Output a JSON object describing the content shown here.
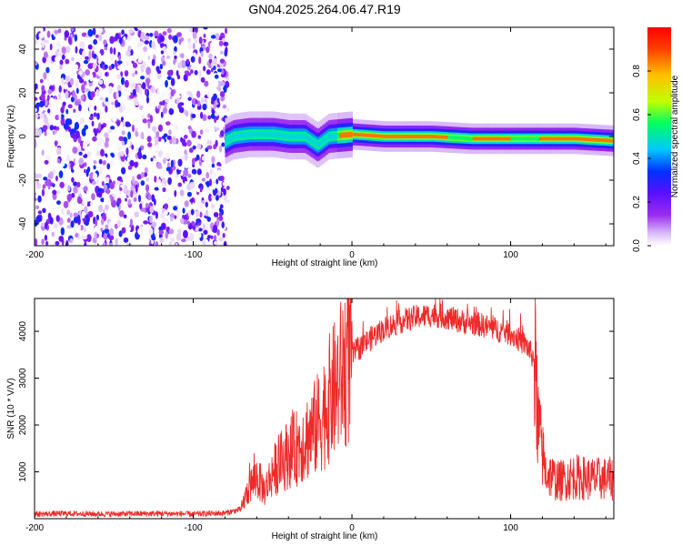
{
  "figure": {
    "title": "GN04.2025.264.06.47.R19"
  },
  "chart_data": [
    {
      "type": "heatmap",
      "title": "GN04.2025.264.06.47.R19",
      "xlabel": "Height of straight line (km)",
      "ylabel": "Frequency (Hz)",
      "xlim": [
        -200,
        165
      ],
      "ylim": [
        -50,
        50
      ],
      "x_ticks": [
        -200,
        -100,
        0,
        100
      ],
      "y_ticks": [
        -40,
        -20,
        0,
        20,
        40
      ],
      "colorbar": {
        "label": "Normalized spectral amplitude",
        "range": [
          0,
          1
        ],
        "ticks": [
          0.0,
          0.2,
          0.4,
          0.6,
          0.8
        ],
        "colormap": [
          "#ffffff",
          "#d8b8f8",
          "#9b2cf0",
          "#5a10ff",
          "#0030ff",
          "#00c8ff",
          "#00ff60",
          "#c0ff00",
          "#ffc000",
          "#ff4000",
          "#ff0000"
        ]
      },
      "regions": [
        {
          "name": "noise",
          "x_range": [
            -200,
            -78
          ],
          "description_values": {
            "amplitude_range": [
              0.0,
              0.35
            ]
          }
        },
        {
          "name": "signal_track",
          "x_range": [
            -78,
            165
          ],
          "centre_freq_hz": [
            [
              -85,
              -4
            ],
            [
              -75,
              0
            ],
            [
              -65,
              1
            ],
            [
              -50,
              1
            ],
            [
              -40,
              0
            ],
            [
              -30,
              0
            ],
            [
              -22,
              -4
            ],
            [
              -15,
              0
            ],
            [
              0,
              1
            ],
            [
              20,
              0
            ],
            [
              50,
              0
            ],
            [
              75,
              -1
            ],
            [
              100,
              -1
            ],
            [
              120,
              -1
            ],
            [
              140,
              -1
            ],
            [
              165,
              -2
            ]
          ]
        }
      ]
    },
    {
      "type": "line",
      "title": "",
      "xlabel": "Height of straight line (km)",
      "ylabel": "SNR (10 * V/V)",
      "xlim": [
        -200,
        165
      ],
      "ylim": [
        0,
        4700
      ],
      "x_ticks": [
        -200,
        -100,
        0,
        100
      ],
      "y_ticks": [
        1000,
        2000,
        3000,
        4000
      ],
      "series": [
        {
          "color": "#ee2a2a",
          "x": [
            -200,
            -180,
            -160,
            -140,
            -120,
            -100,
            -80,
            -70,
            -65,
            -60,
            -55,
            -50,
            -45,
            -40,
            -35,
            -30,
            -25,
            -20,
            -15,
            -10,
            -5,
            0,
            10,
            20,
            30,
            40,
            50,
            60,
            70,
            80,
            90,
            100,
            110,
            115,
            118,
            122,
            130,
            140,
            150,
            165
          ],
          "y": [
            100,
            110,
            100,
            105,
            110,
            100,
            120,
            200,
            650,
            900,
            600,
            1000,
            1200,
            1400,
            1500,
            1700,
            1850,
            2100,
            2500,
            2800,
            3200,
            3500,
            3800,
            4050,
            4200,
            4300,
            4350,
            4300,
            4200,
            4150,
            4050,
            3950,
            3700,
            3400,
            1800,
            1000,
            800,
            900,
            850,
            850
          ]
        }
      ]
    }
  ]
}
